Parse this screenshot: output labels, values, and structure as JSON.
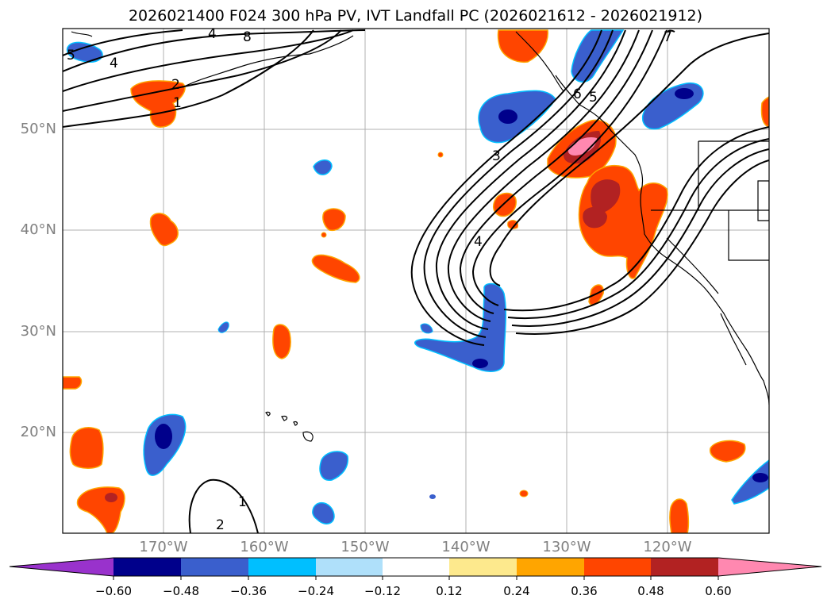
{
  "title": "2026021400 F024 300 hPa PV, IVT Landfall PC (2026021612 - 2026021912)",
  "lat_labels": [
    "50°N",
    "40°N",
    "30°N",
    "20°N"
  ],
  "lon_labels": [
    "170°W",
    "160°W",
    "150°W",
    "140°W",
    "130°W",
    "120°W"
  ],
  "contour_labels": [
    "4",
    "8",
    "5",
    "4",
    "7",
    "2",
    "1",
    "3",
    "4",
    "2",
    "1",
    "5",
    "6"
  ],
  "colorbar": {
    "ticks": [
      "−0.60",
      "−0.48",
      "−0.36",
      "−0.24",
      "−0.12",
      "0.12",
      "0.24",
      "0.36",
      "0.48",
      "0.60"
    ],
    "colors": [
      "#9932cc",
      "#00008b",
      "#3a5fcd",
      "#00bfff",
      "#afe0fa",
      "#ffffff",
      "#fde98d",
      "#ffa500",
      "#ff4500",
      "#b22222",
      "#ff88b0"
    ]
  },
  "colors": {
    "blue_dark": "#00008b",
    "blue_mid": "#3a5fcd",
    "blue_light": "#00bfff",
    "red_orange": "#ff4500",
    "red_dark": "#b22222",
    "pink": "#ff88b0",
    "orange": "#ffa500",
    "yellow": "#fde98d",
    "grid": "#b0b0b0"
  }
}
